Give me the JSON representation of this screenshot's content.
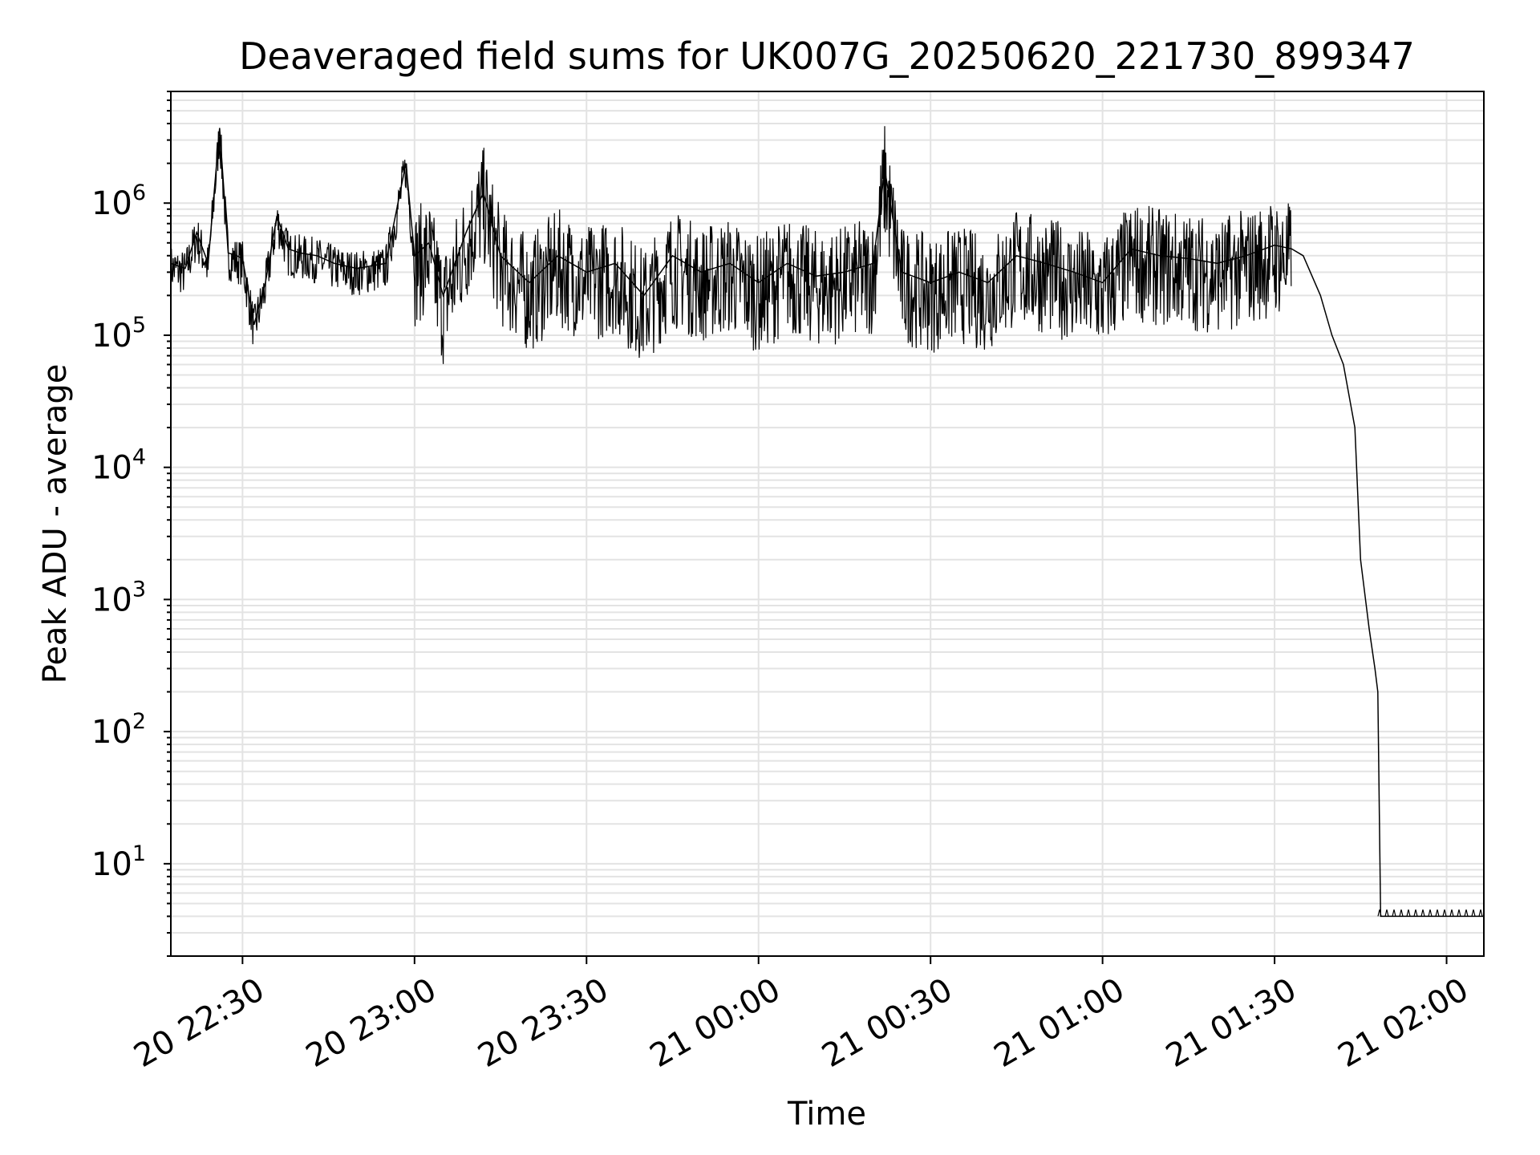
{
  "chart_data": {
    "type": "line",
    "title": "Deaveraged field sums for UK007G_20250620_221730_899347",
    "xlabel": "Time",
    "ylabel": "Peak ADU - average",
    "yscale": "log",
    "ylim": [
      2,
      7000000
    ],
    "xlim": [
      "2025-06-20 22:17:30",
      "2025-06-21 02:06:30"
    ],
    "grid": true,
    "x_ticks": [
      "20 22:30",
      "20 23:00",
      "20 23:30",
      "21 00:00",
      "21 00:30",
      "21 01:00",
      "21 01:30",
      "21 02:00"
    ],
    "y_ticks": [
      {
        "base": "10",
        "exp": "1"
      },
      {
        "base": "10",
        "exp": "2"
      },
      {
        "base": "10",
        "exp": "3"
      },
      {
        "base": "10",
        "exp": "4"
      },
      {
        "base": "10",
        "exp": "5"
      },
      {
        "base": "10",
        "exp": "6"
      }
    ],
    "line_color": "#000000",
    "series": [
      {
        "x": [
          "2025-06-20 22:17:30",
          "2025-06-20 22:20:00",
          "2025-06-20 22:22:00",
          "2025-06-20 22:24:00",
          "2025-06-20 22:26:00",
          "2025-06-20 22:27:30",
          "2025-06-20 22:29:00",
          "2025-06-20 22:30:00",
          "2025-06-20 22:32:00",
          "2025-06-20 22:34:00",
          "2025-06-20 22:36:00",
          "2025-06-20 22:38:00",
          "2025-06-20 22:40:00",
          "2025-06-20 22:43:00",
          "2025-06-20 22:46:00",
          "2025-06-20 22:50:00",
          "2025-06-20 22:55:00",
          "2025-06-20 22:58:30",
          "2025-06-20 23:00:00",
          "2025-06-20 23:02:30",
          "2025-06-20 23:05:00",
          "2025-06-20 23:09:00",
          "2025-06-20 23:12:00",
          "2025-06-20 23:15:00",
          "2025-06-20 23:20:00",
          "2025-06-20 23:25:00",
          "2025-06-20 23:30:00",
          "2025-06-20 23:35:00",
          "2025-06-20 23:40:00",
          "2025-06-20 23:45:00",
          "2025-06-20 23:50:00",
          "2025-06-20 23:55:00",
          "2025-06-21 00:00:00",
          "2025-06-21 00:05:00",
          "2025-06-21 00:10:00",
          "2025-06-21 00:15:00",
          "2025-06-21 00:20:00",
          "2025-06-21 00:22:00",
          "2025-06-21 00:25:00",
          "2025-06-21 00:30:00",
          "2025-06-21 00:35:00",
          "2025-06-21 00:40:00",
          "2025-06-21 00:45:00",
          "2025-06-21 00:50:00",
          "2025-06-21 00:55:00",
          "2025-06-21 01:00:00",
          "2025-06-21 01:05:00",
          "2025-06-21 01:10:00",
          "2025-06-21 01:15:00",
          "2025-06-21 01:20:00",
          "2025-06-21 01:25:00",
          "2025-06-21 01:30:00",
          "2025-06-21 01:33:00",
          "2025-06-21 01:35:00",
          "2025-06-21 01:38:00",
          "2025-06-21 01:40:00",
          "2025-06-21 01:42:00",
          "2025-06-21 01:44:00",
          "2025-06-21 01:45:00",
          "2025-06-21 01:46:30",
          "2025-06-21 01:47:30",
          "2025-06-21 01:48:00",
          "2025-06-21 01:48:30",
          "2025-06-21 01:48:40",
          "2025-06-21 01:48:41",
          "2025-06-21 02:06:30"
        ],
        "values": [
          350000,
          320000,
          600000,
          350000,
          3700000,
          420000,
          400000,
          380000,
          120000,
          250000,
          800000,
          450000,
          420000,
          400000,
          350000,
          320000,
          350000,
          2000000,
          400000,
          500000,
          200000,
          600000,
          1200000,
          400000,
          250000,
          400000,
          300000,
          350000,
          200000,
          400000,
          300000,
          350000,
          250000,
          350000,
          280000,
          300000,
          350000,
          1800000,
          300000,
          250000,
          300000,
          250000,
          400000,
          350000,
          300000,
          250000,
          450000,
          400000,
          380000,
          350000,
          400000,
          480000,
          450000,
          400000,
          200000,
          100000,
          60000,
          20000,
          2000,
          600,
          300,
          200,
          4,
          4,
          4,
          4
        ],
        "spike_values_tail": 4.5
      }
    ]
  }
}
